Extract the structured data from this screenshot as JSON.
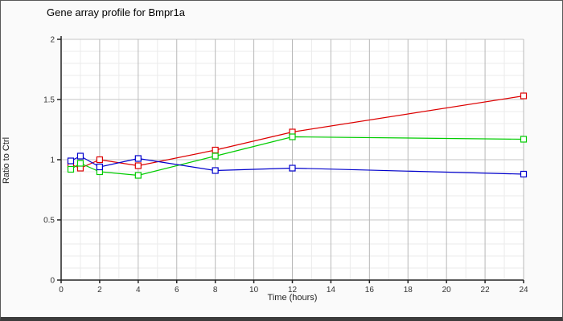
{
  "window": {
    "title": "Gene array profile for Bmpr1a"
  },
  "chart_data": {
    "type": "line",
    "title": "Gene array profile for Bmpr1a",
    "xlabel": "Time (hours)",
    "ylabel": "Ratio to Ctrl",
    "xlim": [
      0,
      24
    ],
    "ylim": [
      0,
      2
    ],
    "x_ticks": [
      0,
      2,
      4,
      6,
      8,
      10,
      12,
      14,
      16,
      18,
      20,
      22,
      24
    ],
    "y_ticks": [
      0,
      0.5,
      1,
      1.5,
      2
    ],
    "y_tick_labels": [
      "0",
      "0.5",
      "1",
      "1.5",
      "2"
    ],
    "x_minor_step": 1,
    "y_minor_step": 0.1,
    "grid": "on",
    "legend": "none",
    "marker": "open-square",
    "x": [
      0.5,
      1,
      2,
      4,
      8,
      12,
      24
    ],
    "series": [
      {
        "name": "red-series",
        "color": "#dd0000",
        "values": [
          0.96,
          0.93,
          1.0,
          0.95,
          1.08,
          1.23,
          1.53
        ]
      },
      {
        "name": "green-series",
        "color": "#00cc00",
        "values": [
          0.92,
          0.97,
          0.9,
          0.87,
          1.03,
          1.19,
          1.17
        ]
      },
      {
        "name": "blue-series",
        "color": "#0000cc",
        "values": [
          0.99,
          1.03,
          0.94,
          1.01,
          0.91,
          0.93,
          0.88
        ]
      }
    ],
    "colors": {
      "axis": "#222222",
      "major_grid_v": "#b8b8b8",
      "major_grid_h": "#c6c6c6",
      "minor_grid": "#ebebeb",
      "plot_bg": "#ffffff"
    }
  }
}
